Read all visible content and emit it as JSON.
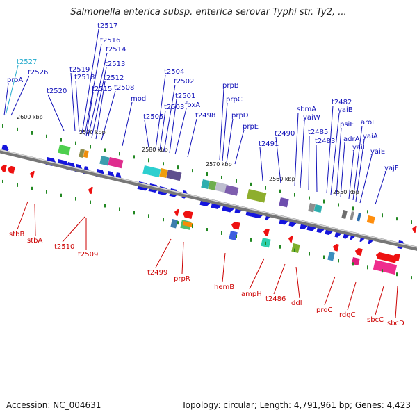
{
  "title": "Salmonella enterica subsp. enterica serovar Typhi str. Ty2, ...",
  "footer": {
    "accession": "Accession: NC_004631",
    "summary": "Topology: circular; Length: 4,791,961 bp; Genes: 4,423"
  },
  "colors": {
    "forward_label": "#1010b8",
    "reverse_label": "#cc0000",
    "highlight_label": "#22aacc",
    "forward_arrow": "#1515dd",
    "reverse_arrow": "#ee1111",
    "backbone": "#777777",
    "tick": "#228822"
  },
  "kbp_markers": [
    "2600 kbp",
    "2590 kbp",
    "2580 kbp",
    "2570 kbp",
    "2560 kbp",
    "2550 kbp"
  ],
  "genes_forward": [
    "t2527",
    "t2526",
    "proA",
    "t2520",
    "t2519",
    "t2518",
    "t2517",
    "t2516",
    "t2515",
    "t2514",
    "t2513",
    "t2512",
    "t2508",
    "mod",
    "t2505",
    "t2504",
    "t2503",
    "t2502",
    "t2501",
    "foxA",
    "t2498",
    "prpB",
    "prpC",
    "prpD",
    "prpE",
    "t2491",
    "t2490",
    "sbmA",
    "yaiW",
    "t2485",
    "t2483",
    "t2482",
    "yaiB",
    "psiF",
    "adrA",
    "yaiI",
    "aroL",
    "yaiA",
    "yaiE",
    "yajF"
  ],
  "genes_reverse": [
    "stbB",
    "stbA",
    "t2510",
    "t2509",
    "t2499",
    "prpR",
    "hemB",
    "ampH",
    "t2486",
    "ddl",
    "proC",
    "rdgC",
    "sbcC",
    "sbcD"
  ]
}
